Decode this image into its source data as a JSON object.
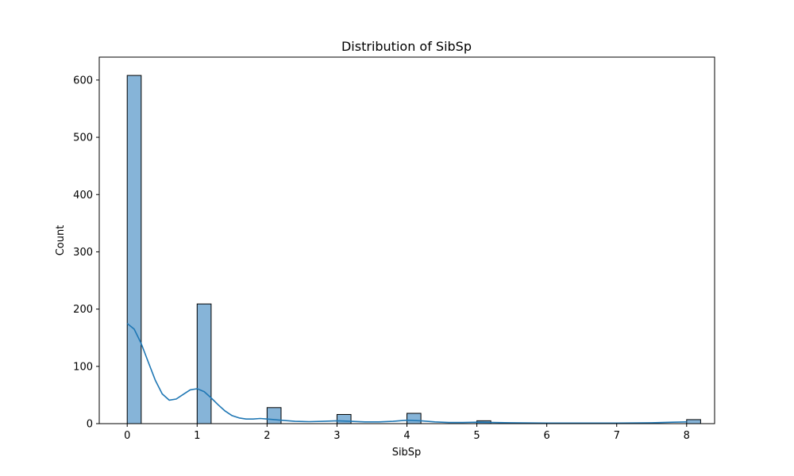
{
  "chart_data": {
    "type": "bar",
    "title": "Distribution of SibSp",
    "xlabel": "SibSp",
    "ylabel": "Count",
    "xlim": [
      -0.4,
      8.4
    ],
    "ylim": [
      0,
      640
    ],
    "xticks": [
      0,
      1,
      2,
      3,
      4,
      5,
      6,
      7,
      8
    ],
    "yticks": [
      0,
      100,
      200,
      300,
      400,
      500,
      600
    ],
    "bin_width": 0.2,
    "bars": [
      {
        "x": 0,
        "count": 608
      },
      {
        "x": 1,
        "count": 209
      },
      {
        "x": 2,
        "count": 28
      },
      {
        "x": 3,
        "count": 16
      },
      {
        "x": 4,
        "count": 18
      },
      {
        "x": 5,
        "count": 5
      },
      {
        "x": 8,
        "count": 7
      }
    ],
    "kde": {
      "x": [
        0,
        0.1,
        0.2,
        0.3,
        0.4,
        0.5,
        0.6,
        0.7,
        0.8,
        0.9,
        1.0,
        1.1,
        1.2,
        1.3,
        1.4,
        1.5,
        1.6,
        1.7,
        1.8,
        1.9,
        2.0,
        2.2,
        2.4,
        2.6,
        2.8,
        3.0,
        3.2,
        3.4,
        3.6,
        3.8,
        4.0,
        4.2,
        4.4,
        4.6,
        4.8,
        5.0,
        5.5,
        6.0,
        6.5,
        7.0,
        7.5,
        7.8,
        8.0
      ],
      "y": [
        175,
        165,
        140,
        108,
        76,
        52,
        41,
        43,
        51,
        59,
        61,
        56,
        45,
        33,
        22,
        14,
        10,
        8,
        8,
        9,
        8,
        6,
        4,
        3.5,
        4,
        5,
        4,
        3,
        3,
        4,
        6,
        5,
        3,
        2,
        2,
        2.5,
        1.5,
        1,
        1,
        1,
        1.5,
        2.5,
        3
      ]
    },
    "colors": {
      "bar_fill": "#86b4d8",
      "bar_edge": "#000000",
      "kde_line": "#1f77b4"
    },
    "grid": false,
    "legend": "none"
  }
}
